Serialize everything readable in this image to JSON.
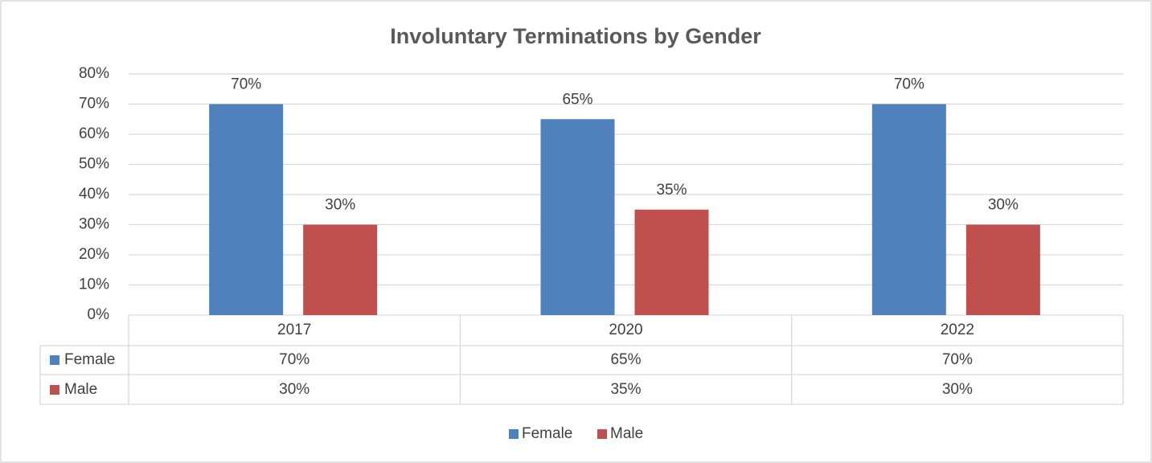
{
  "chart_data": {
    "type": "bar",
    "title": "Involuntary Terminations by Gender",
    "categories": [
      "2017",
      "2020",
      "2022"
    ],
    "series": [
      {
        "name": "Female",
        "color": "#4f81bd",
        "values": [
          70,
          65,
          70
        ],
        "value_labels": [
          "70%",
          "65%",
          "70%"
        ]
      },
      {
        "name": "Male",
        "color": "#c0504d",
        "values": [
          30,
          35,
          30
        ],
        "value_labels": [
          "30%",
          "35%",
          "30%"
        ]
      }
    ],
    "ylim": [
      0,
      80
    ],
    "yticks": [
      {
        "value": 0,
        "label": "0%"
      },
      {
        "value": 10,
        "label": "10%"
      },
      {
        "value": 20,
        "label": "20%"
      },
      {
        "value": 30,
        "label": "30%"
      },
      {
        "value": 40,
        "label": "40%"
      },
      {
        "value": 50,
        "label": "50%"
      },
      {
        "value": 60,
        "label": "60%"
      },
      {
        "value": 70,
        "label": "70%"
      },
      {
        "value": 80,
        "label": "80%"
      }
    ],
    "grid": true,
    "legend": "bottom",
    "data_table": true
  }
}
